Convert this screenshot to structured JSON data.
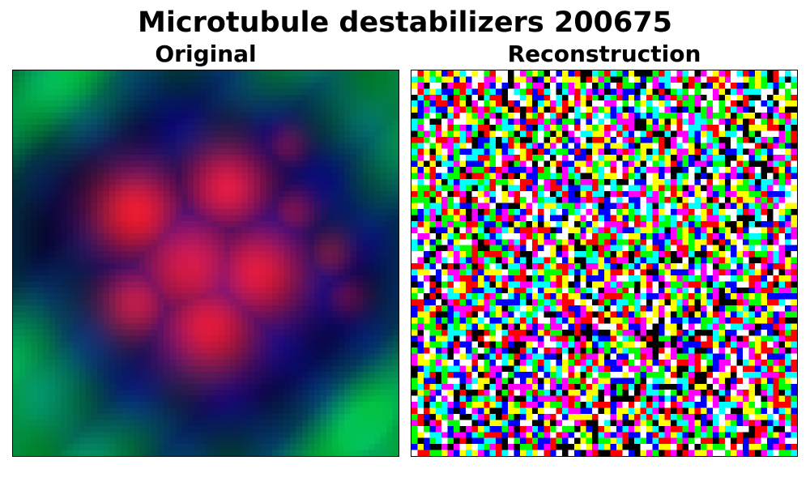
{
  "figure": {
    "title": "Microtubule destabilizers 200675"
  },
  "panels": [
    {
      "label": "Original"
    },
    {
      "label": "Reconstruction"
    }
  ]
}
